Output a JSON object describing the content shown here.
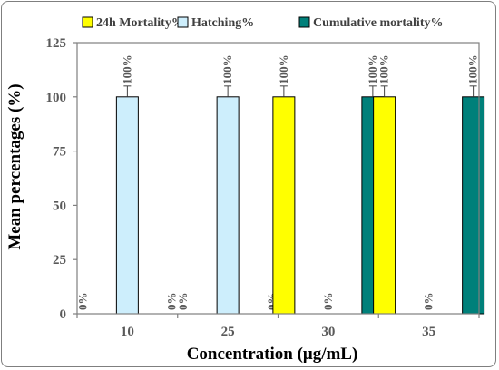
{
  "chart_data": {
    "type": "bar",
    "title": "",
    "xlabel": "Concentration (μg/mL)",
    "ylabel": "Mean percentages (%)",
    "ylim": [
      0,
      125
    ],
    "yticks": [
      "0",
      "25",
      "50",
      "75",
      "100",
      "125"
    ],
    "categories": [
      "10",
      "25",
      "30",
      "35"
    ],
    "grid": false,
    "legend_position": "top",
    "series": [
      {
        "name": "24h Mortality%",
        "color": "#ffff00",
        "values": [
          0,
          0,
          100,
          100
        ],
        "errors": [
          0,
          0,
          5,
          5
        ],
        "labels": [
          "0%",
          "0%",
          "100%",
          "100%"
        ]
      },
      {
        "name": "Hatching%",
        "color": "#cdeefc",
        "values": [
          100,
          100,
          0,
          0
        ],
        "errors": [
          5,
          5,
          0,
          0
        ],
        "labels": [
          "100%",
          "100%",
          "0%",
          "0%"
        ]
      },
      {
        "name": "Cumulative  mortality%",
        "color": "#00807a",
        "values": [
          0,
          0,
          100,
          100
        ],
        "errors": [
          0,
          0,
          5,
          5
        ],
        "labels": [
          "0%",
          "0%",
          "100%",
          "100%"
        ]
      }
    ]
  }
}
